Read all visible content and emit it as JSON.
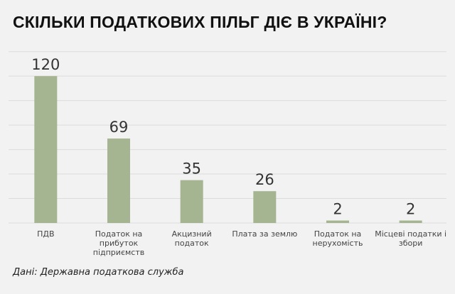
{
  "chart_data": {
    "type": "bar",
    "title": "СКІЛЬКИ ПОДАТКОВИХ ПІЛЬГ ДІЄ В УКРАЇНІ?",
    "categories": [
      [
        "ПДВ"
      ],
      [
        "Податок на",
        "прибуток",
        "підприємств"
      ],
      [
        "Акцизний",
        "податок"
      ],
      [
        "Плата за землю"
      ],
      [
        "Податок на",
        "нерухомість"
      ],
      [
        "Місцеві податки і",
        "збори"
      ]
    ],
    "values": [
      120,
      69,
      35,
      26,
      2,
      2
    ],
    "data_labels": [
      "120",
      "69",
      "35",
      "26",
      "2",
      "2"
    ],
    "ylim": [
      0,
      140
    ],
    "grid_step": 20,
    "grid": true,
    "bar_color": "#a5b591",
    "grid_color": "#dcdcdc"
  },
  "source": "Дані: Державна податкова служба"
}
